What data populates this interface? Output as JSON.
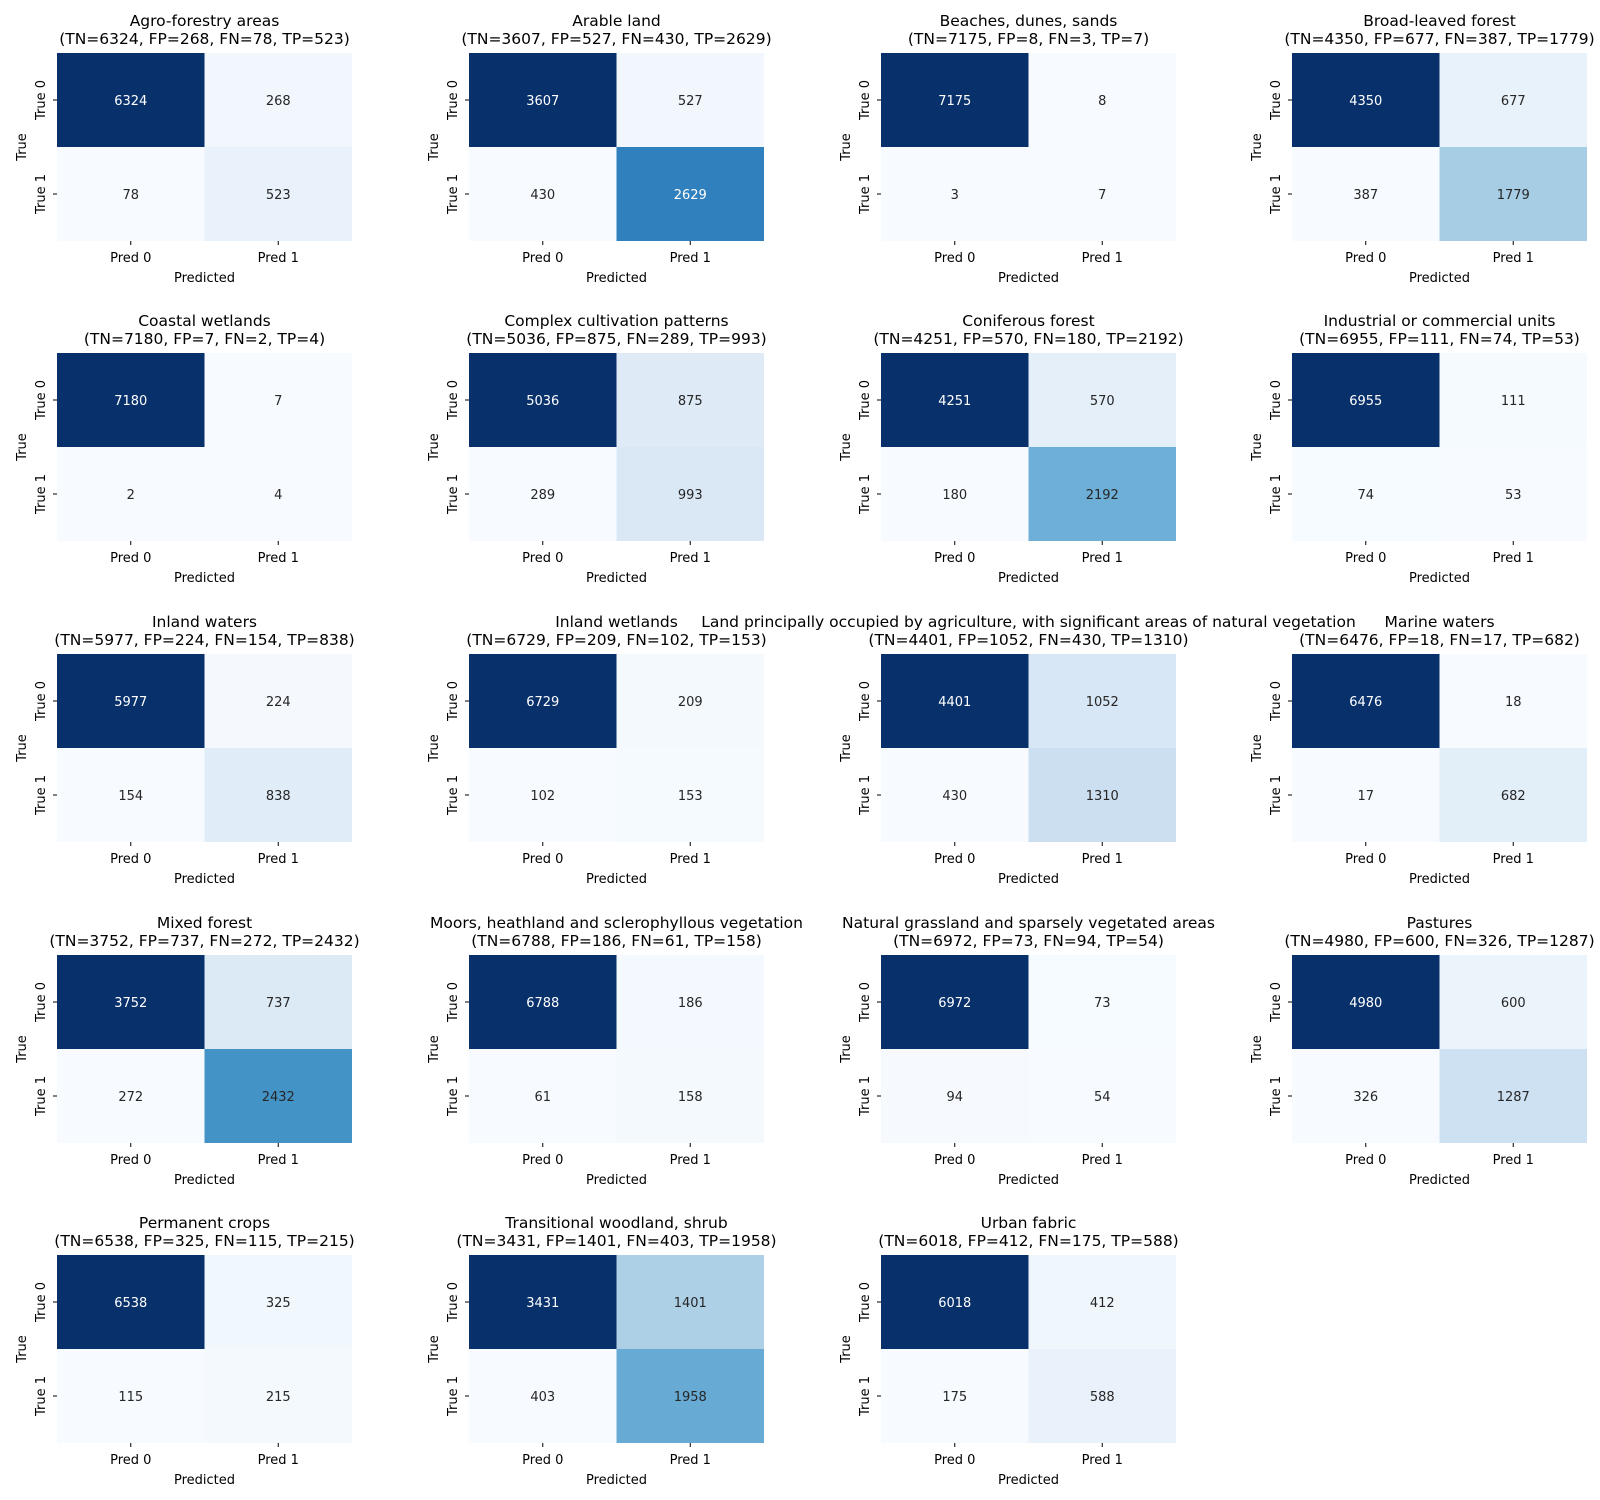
{
  "chart_data": {
    "type": "heatmap",
    "colormap": "Blues",
    "row_labels": [
      "True 0",
      "True 1"
    ],
    "col_labels": [
      "Pred 0",
      "Pred 1"
    ],
    "xlabel": "Predicted",
    "ylabel": "True",
    "panels": [
      {
        "title": "Agro-forestry areas",
        "subtitle": "(TN=6324, FP=268, FN=78, TP=523)",
        "matrix": [
          [
            6324,
            268
          ],
          [
            78,
            523
          ]
        ]
      },
      {
        "title": "Arable land",
        "subtitle": "(TN=3607, FP=527, FN=430, TP=2629)",
        "matrix": [
          [
            3607,
            527
          ],
          [
            430,
            2629
          ]
        ]
      },
      {
        "title": "Beaches, dunes, sands",
        "subtitle": "(TN=7175, FP=8, FN=3, TP=7)",
        "matrix": [
          [
            7175,
            8
          ],
          [
            3,
            7
          ]
        ]
      },
      {
        "title": "Broad-leaved forest",
        "subtitle": "(TN=4350, FP=677, FN=387, TP=1779)",
        "matrix": [
          [
            4350,
            677
          ],
          [
            387,
            1779
          ]
        ]
      },
      {
        "title": "Coastal wetlands",
        "subtitle": "(TN=7180, FP=7, FN=2, TP=4)",
        "matrix": [
          [
            7180,
            7
          ],
          [
            2,
            4
          ]
        ]
      },
      {
        "title": "Complex cultivation patterns",
        "subtitle": "(TN=5036, FP=875, FN=289, TP=993)",
        "matrix": [
          [
            5036,
            875
          ],
          [
            289,
            993
          ]
        ]
      },
      {
        "title": "Coniferous forest",
        "subtitle": "(TN=4251, FP=570, FN=180, TP=2192)",
        "matrix": [
          [
            4251,
            570
          ],
          [
            180,
            2192
          ]
        ]
      },
      {
        "title": "Industrial or commercial units",
        "subtitle": "(TN=6955, FP=111, FN=74, TP=53)",
        "matrix": [
          [
            6955,
            111
          ],
          [
            74,
            53
          ]
        ]
      },
      {
        "title": "Inland waters",
        "subtitle": "(TN=5977, FP=224, FN=154, TP=838)",
        "matrix": [
          [
            5977,
            224
          ],
          [
            154,
            838
          ]
        ]
      },
      {
        "title": "Inland wetlands",
        "subtitle": "(TN=6729, FP=209, FN=102, TP=153)",
        "matrix": [
          [
            6729,
            209
          ],
          [
            102,
            153
          ]
        ]
      },
      {
        "title": "Land principally occupied by agriculture, with significant areas of natural vegetation",
        "subtitle": "(TN=4401, FP=1052, FN=430, TP=1310)",
        "matrix": [
          [
            4401,
            1052
          ],
          [
            430,
            1310
          ]
        ]
      },
      {
        "title": "Marine waters",
        "subtitle": "(TN=6476, FP=18, FN=17, TP=682)",
        "matrix": [
          [
            6476,
            18
          ],
          [
            17,
            682
          ]
        ]
      },
      {
        "title": "Mixed forest",
        "subtitle": "(TN=3752, FP=737, FN=272, TP=2432)",
        "matrix": [
          [
            3752,
            737
          ],
          [
            272,
            2432
          ]
        ]
      },
      {
        "title": "Moors, heathland and sclerophyllous vegetation",
        "subtitle": "(TN=6788, FP=186, FN=61, TP=158)",
        "matrix": [
          [
            6788,
            186
          ],
          [
            61,
            158
          ]
        ]
      },
      {
        "title": "Natural grassland and sparsely vegetated areas",
        "subtitle": "(TN=6972, FP=73, FN=94, TP=54)",
        "matrix": [
          [
            6972,
            73
          ],
          [
            94,
            54
          ]
        ]
      },
      {
        "title": "Pastures",
        "subtitle": "(TN=4980, FP=600, FN=326, TP=1287)",
        "matrix": [
          [
            4980,
            600
          ],
          [
            326,
            1287
          ]
        ]
      },
      {
        "title": "Permanent crops",
        "subtitle": "(TN=6538, FP=325, FN=115, TP=215)",
        "matrix": [
          [
            6538,
            325
          ],
          [
            115,
            215
          ]
        ]
      },
      {
        "title": "Transitional woodland, shrub",
        "subtitle": "(TN=3431, FP=1401, FN=403, TP=1958)",
        "matrix": [
          [
            3431,
            1401
          ],
          [
            403,
            1958
          ]
        ]
      },
      {
        "title": "Urban fabric",
        "subtitle": "(TN=6018, FP=412, FN=175, TP=588)",
        "matrix": [
          [
            6018,
            412
          ],
          [
            175,
            588
          ]
        ]
      }
    ]
  }
}
